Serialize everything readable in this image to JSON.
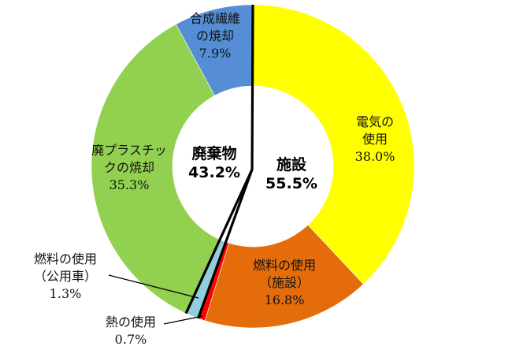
{
  "chart_data": {
    "type": "pie",
    "subtype": "donut",
    "title": "",
    "start_angle_deg": 0,
    "direction": "clockwise",
    "slices": [
      {
        "key": "electricity",
        "label_lines": [
          "電気の",
          "使用"
        ],
        "label": "電気の使用",
        "value": 38.0,
        "value_label": "38.0%",
        "color": "#FFFF00",
        "group": "施設"
      },
      {
        "key": "fuel_facility",
        "label_lines": [
          "燃料の使用",
          "（施設）"
        ],
        "label": "燃料の使用（施設）",
        "value": 16.8,
        "value_label": "16.8%",
        "color": "#E46C0A",
        "group": "施設"
      },
      {
        "key": "heat",
        "label_lines": [
          "熱の使用"
        ],
        "label": "熱の使用",
        "value": 0.7,
        "value_label": "0.7%",
        "color": "#FF0000",
        "group": "施設"
      },
      {
        "key": "fuel_vehicle",
        "label_lines": [
          "燃料の使用",
          "（公用車）"
        ],
        "label": "燃料の使用（公用車）",
        "value": 1.3,
        "value_label": "1.3%",
        "color": "#92CDDC",
        "group": "公用車"
      },
      {
        "key": "plastic",
        "label_lines": [
          "廃プラスチッ",
          "クの焼却"
        ],
        "label": "廃プラスチックの焼却",
        "value": 35.3,
        "value_label": "35.3%",
        "color": "#92D050",
        "group": "廃棄物"
      },
      {
        "key": "synthetic_fiber",
        "label_lines": [
          "合成繊維",
          "の焼却"
        ],
        "label": "合成繊維の焼却",
        "value": 7.9,
        "value_label": "7.9%",
        "color": "#558ED5",
        "group": "廃棄物"
      }
    ],
    "groups": [
      {
        "name": "施設",
        "value": 55.5,
        "value_label": "55.5%"
      },
      {
        "name": "廃棄物",
        "value": 43.2,
        "value_label": "43.2%"
      }
    ],
    "legend": "none",
    "grid": false
  },
  "center": {
    "facility": {
      "name": "施設",
      "value": "55.5%"
    },
    "waste": {
      "name": "廃棄物",
      "value": "43.2%"
    }
  }
}
